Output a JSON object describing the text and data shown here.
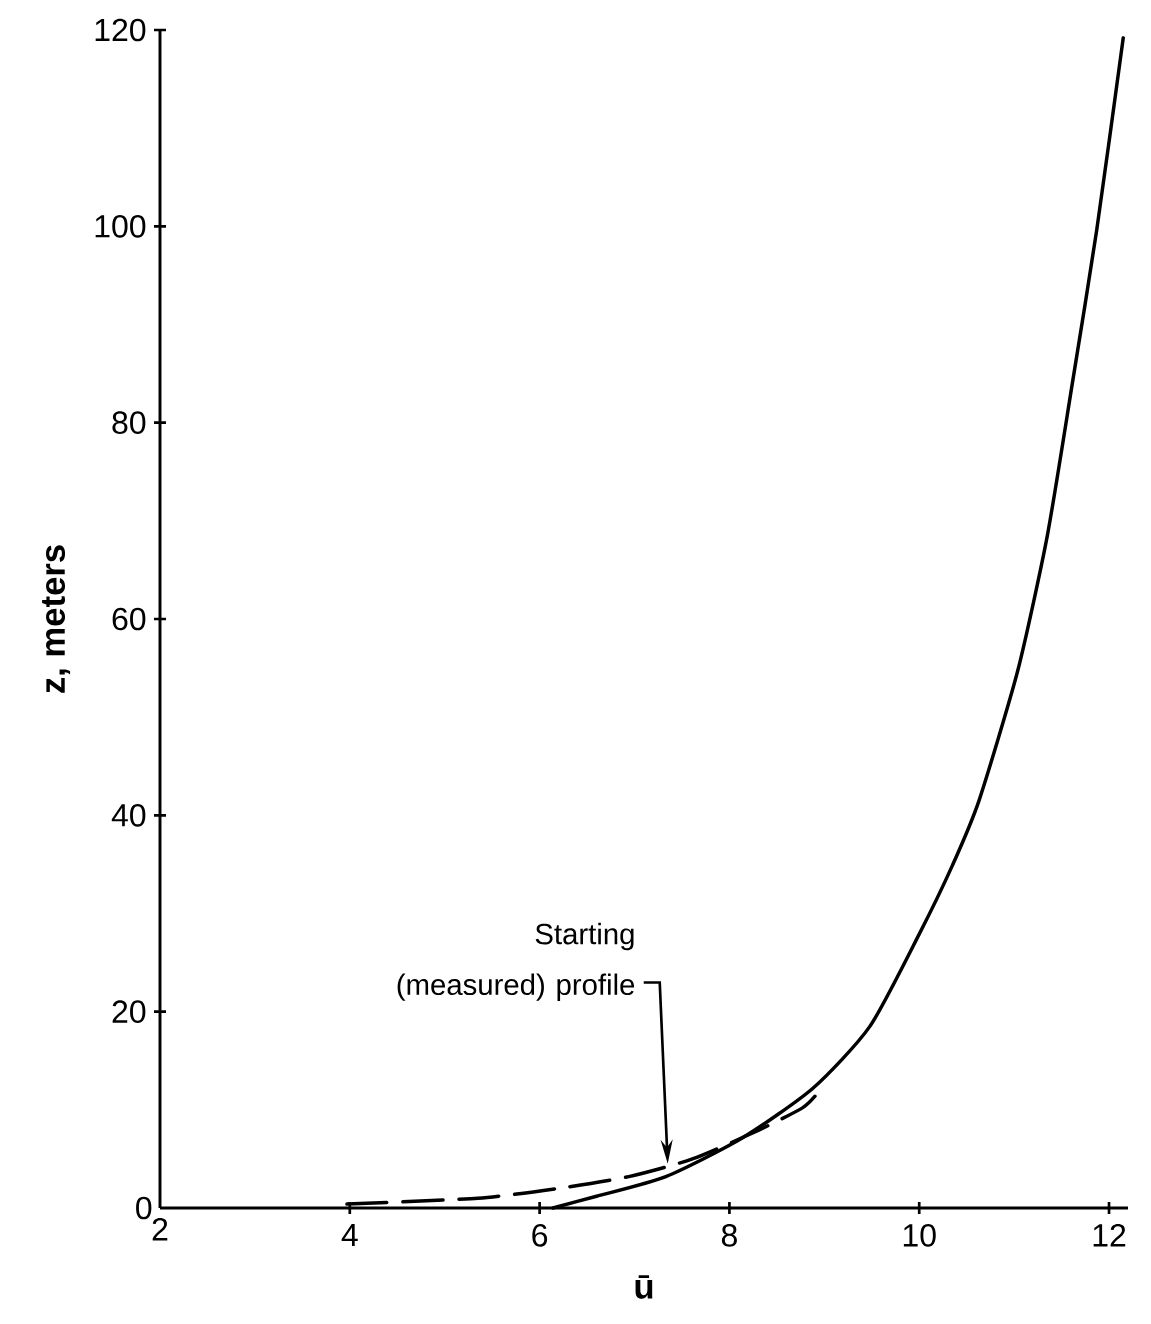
{
  "chart_data": {
    "type": "line",
    "xlabel": "ū",
    "ylabel": "z, meters",
    "xlim": [
      2,
      12.2
    ],
    "ylim": [
      0,
      120
    ],
    "xticks": [
      2,
      4,
      6,
      8,
      10,
      12
    ],
    "yticks": [
      0,
      20,
      40,
      60,
      80,
      100,
      120
    ],
    "grid": false,
    "marker": "none",
    "series": [
      {
        "color": "#000000",
        "line_style": "solid",
        "x": [
          6.14,
          6.6,
          7.33,
          8.13,
          8.88,
          9.48,
          10.0,
          10.35,
          10.63,
          11.04,
          11.35,
          11.61,
          11.87,
          12.15
        ],
        "values": [
          0,
          1.2,
          3.2,
          7.1,
          12.2,
          18.5,
          27.9,
          34.9,
          41.5,
          54.8,
          68.5,
          83.8,
          99.6,
          119.2
        ]
      },
      {
        "color": "#000000",
        "line_style": "dashed",
        "x": [
          3.97,
          5.35,
          6.2,
          6.94,
          7.61,
          8.28,
          8.77,
          8.92
        ],
        "values": [
          0.4,
          1.0,
          2.0,
          3.2,
          5.0,
          7.8,
          10.2,
          11.6
        ]
      }
    ],
    "annotations": [
      "Starting (measured) profile"
    ]
  }
}
